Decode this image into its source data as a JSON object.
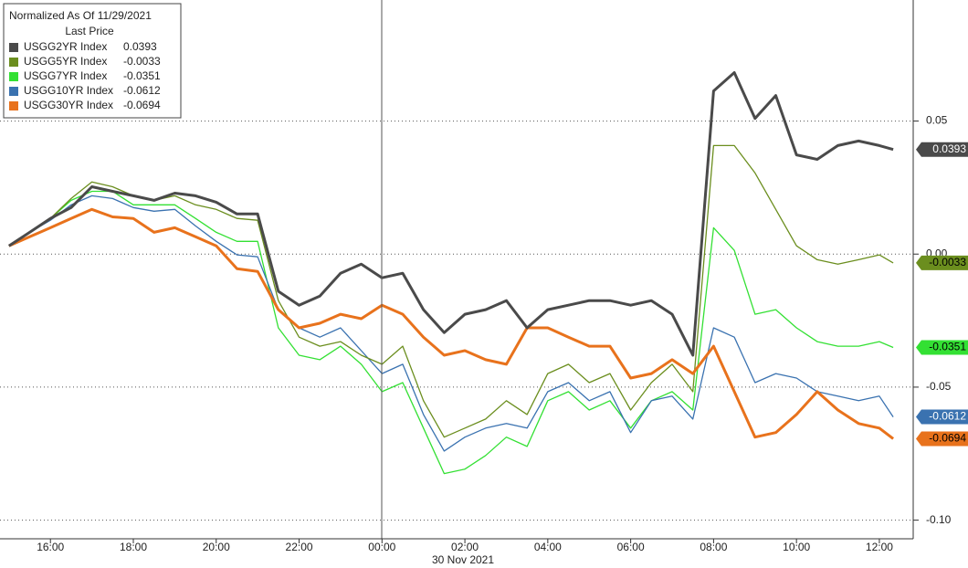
{
  "chart_data": {
    "type": "line",
    "legend_title": "Normalized As Of 11/29/2021",
    "legend_subtitle": "Last Price",
    "date_label": "30 Nov 2021",
    "x": [
      "15:00",
      "15:30",
      "16:00",
      "16:30",
      "17:00",
      "17:30",
      "18:00",
      "18:30",
      "19:00",
      "19:30",
      "20:00",
      "20:30",
      "21:00",
      "21:30",
      "22:00",
      "22:30",
      "23:00",
      "23:30",
      "00:00",
      "00:30",
      "01:00",
      "01:30",
      "02:00",
      "02:30",
      "03:00",
      "03:30",
      "04:00",
      "04:30",
      "05:00",
      "05:30",
      "06:00",
      "06:30",
      "07:00",
      "07:30",
      "08:00",
      "08:30",
      "09:00",
      "09:30",
      "10:00",
      "10:30",
      "11:00",
      "11:30",
      "12:00",
      "12:20"
    ],
    "xlim": [
      "14:47",
      "12:49"
    ],
    "xticks": [
      "16:00",
      "18:00",
      "20:00",
      "22:00",
      "00:00",
      "02:00",
      "04:00",
      "06:00",
      "08:00",
      "10:00",
      "12:00"
    ],
    "ylim": [
      -0.107,
      0.0955
    ],
    "yticks": [
      0.05,
      {
        "value": 0,
        "label": "0.00"
      },
      -0.05,
      {
        "value": -0.1,
        "label": "-0.10"
      }
    ],
    "grid": true,
    "series": [
      {
        "name": "USGG2YR Index",
        "color": "#4a4a4a",
        "values": [
          0.0031,
          0.0082,
          0.0134,
          0.0175,
          0.0253,
          0.0236,
          0.0219,
          0.0202,
          0.0229,
          0.0219,
          0.0195,
          0.0151,
          0.0151,
          -0.014,
          -0.0192,
          -0.0158,
          -0.0072,
          -0.0038,
          -0.0089,
          -0.0072,
          -0.0209,
          -0.0295,
          -0.0226,
          -0.0209,
          -0.0175,
          -0.0277,
          -0.0209,
          -0.0192,
          -0.0175,
          -0.0175,
          -0.0192,
          -0.0175,
          -0.0226,
          -0.038,
          0.0613,
          0.0682,
          0.051,
          0.0596,
          0.0373,
          0.0356,
          0.0408,
          0.0425,
          0.0408,
          0.0393
        ]
      },
      {
        "name": "USGG5YR Index",
        "color": "#6b8e1e",
        "values": [
          0.0031,
          0.0082,
          0.0134,
          0.0209,
          0.0271,
          0.0253,
          0.0219,
          0.0202,
          0.0219,
          0.0185,
          0.0168,
          0.0134,
          0.0127,
          -0.0175,
          -0.0312,
          -0.0346,
          -0.0329,
          -0.038,
          -0.0414,
          -0.0346,
          -0.0551,
          -0.0688,
          -0.0654,
          -0.062,
          -0.0551,
          -0.0603,
          -0.0449,
          -0.0414,
          -0.0483,
          -0.0449,
          -0.0586,
          -0.0483,
          -0.0414,
          -0.0517,
          0.0408,
          0.0408,
          0.0305,
          0.0168,
          0.0031,
          -0.0021,
          -0.0038,
          -0.0021,
          -0.0003,
          -0.0033
        ]
      },
      {
        "name": "USGG7YR Index",
        "color": "#33e033",
        "values": [
          0.0031,
          0.0082,
          0.0134,
          0.0202,
          0.0236,
          0.0236,
          0.0185,
          0.0185,
          0.0185,
          0.0134,
          0.0082,
          0.0048,
          0.0048,
          -0.0277,
          -0.038,
          -0.0397,
          -0.0346,
          -0.0414,
          -0.0517,
          -0.0483,
          -0.0654,
          -0.0825,
          -0.0808,
          -0.0757,
          -0.0688,
          -0.0723,
          -0.0551,
          -0.0517,
          -0.0586,
          -0.0551,
          -0.0654,
          -0.0551,
          -0.0517,
          -0.0586,
          0.0099,
          0.0014,
          -0.0226,
          -0.0209,
          -0.0277,
          -0.0329,
          -0.0346,
          -0.0346,
          -0.0329,
          -0.0351
        ]
      },
      {
        "name": "USGG10YR Index",
        "color": "#3a72b0",
        "values": [
          0.0031,
          0.0082,
          0.0127,
          0.0185,
          0.0219,
          0.0209,
          0.0175,
          0.0161,
          0.0168,
          0.0106,
          0.0048,
          -0.0003,
          -0.001,
          -0.0209,
          -0.0277,
          -0.0312,
          -0.0277,
          -0.0363,
          -0.0449,
          -0.0414,
          -0.0603,
          -0.074,
          -0.0688,
          -0.0654,
          -0.0637,
          -0.0654,
          -0.0517,
          -0.0483,
          -0.0551,
          -0.0517,
          -0.0671,
          -0.0551,
          -0.0534,
          -0.062,
          -0.0277,
          -0.0312,
          -0.0483,
          -0.0449,
          -0.0466,
          -0.0517,
          -0.0534,
          -0.0551,
          -0.0534,
          -0.0612
        ]
      },
      {
        "name": "USGG30YR Index",
        "color": "#e8721c",
        "values": [
          0.0031,
          0.0065,
          0.0099,
          0.0134,
          0.0168,
          0.014,
          0.0134,
          0.0082,
          0.0099,
          0.0065,
          0.0031,
          -0.0055,
          -0.0065,
          -0.0209,
          -0.0277,
          -0.026,
          -0.0226,
          -0.0243,
          -0.0192,
          -0.0226,
          -0.0312,
          -0.038,
          -0.0363,
          -0.0397,
          -0.0414,
          -0.0277,
          -0.0277,
          -0.0312,
          -0.0346,
          -0.0346,
          -0.0466,
          -0.0449,
          -0.0397,
          -0.0449,
          -0.0346,
          -0.0517,
          -0.0688,
          -0.0671,
          -0.0603,
          -0.0517,
          -0.0586,
          -0.0637,
          -0.0654,
          -0.0694
        ]
      }
    ]
  }
}
